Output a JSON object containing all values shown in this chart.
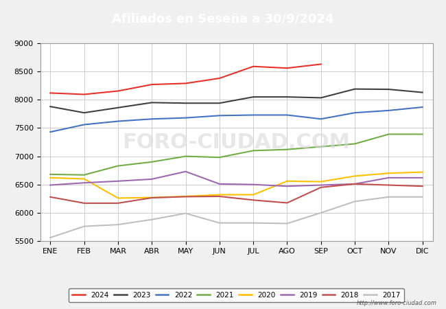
{
  "title": "Afiliados en Seseña a 30/9/2024",
  "title_bg_color": "#4472c4",
  "title_text_color": "#ffffff",
  "ylim": [
    5500,
    9000
  ],
  "yticks": [
    5500,
    6000,
    6500,
    7000,
    7500,
    8000,
    8500,
    9000
  ],
  "months": [
    "ENE",
    "FEB",
    "MAR",
    "ABR",
    "MAY",
    "JUN",
    "JUL",
    "AGO",
    "SEP",
    "OCT",
    "NOV",
    "DIC"
  ],
  "watermark": "http://www.foro-ciudad.com",
  "series": {
    "2024": {
      "color": "#e8312a",
      "data": [
        8120,
        8095,
        8155,
        8270,
        8290,
        8380,
        8590,
        8560,
        8630,
        null,
        null,
        null
      ]
    },
    "2023": {
      "color": "#404040",
      "data": [
        7880,
        7770,
        7860,
        7950,
        7940,
        7940,
        8050,
        8050,
        8035,
        8190,
        8185,
        8130
      ]
    },
    "2022": {
      "color": "#4472c4",
      "data": [
        7430,
        7560,
        7620,
        7660,
        7680,
        7720,
        7730,
        7730,
        7660,
        7770,
        7810,
        7870
      ]
    },
    "2021": {
      "color": "#70ad47",
      "data": [
        6680,
        6670,
        6830,
        6900,
        7000,
        6980,
        7100,
        7120,
        7170,
        7220,
        7390,
        7390
      ]
    },
    "2020": {
      "color": "#ffc000",
      "data": [
        6620,
        6600,
        6260,
        6270,
        6290,
        6320,
        6320,
        6560,
        6550,
        6650,
        6700,
        6720
      ]
    },
    "2019": {
      "color": "#9e68b0",
      "data": [
        6490,
        6530,
        6560,
        6595,
        6730,
        6510,
        6500,
        6470,
        6490,
        6510,
        6620,
        6620
      ]
    },
    "2018": {
      "color": "#c0504d",
      "data": [
        6280,
        6170,
        6170,
        6265,
        6285,
        6290,
        6225,
        6175,
        6450,
        6510,
        6490,
        6470
      ]
    },
    "2017": {
      "color": "#bfbfbf",
      "data": [
        5560,
        5760,
        5790,
        5880,
        5990,
        5820,
        5820,
        5810,
        6000,
        6200,
        6280,
        6280
      ]
    }
  },
  "legend_order": [
    "2024",
    "2023",
    "2022",
    "2021",
    "2020",
    "2019",
    "2018",
    "2017"
  ],
  "background_color": "#f0f0f0",
  "plot_background": "#ffffff",
  "grid_color": "#cccccc"
}
